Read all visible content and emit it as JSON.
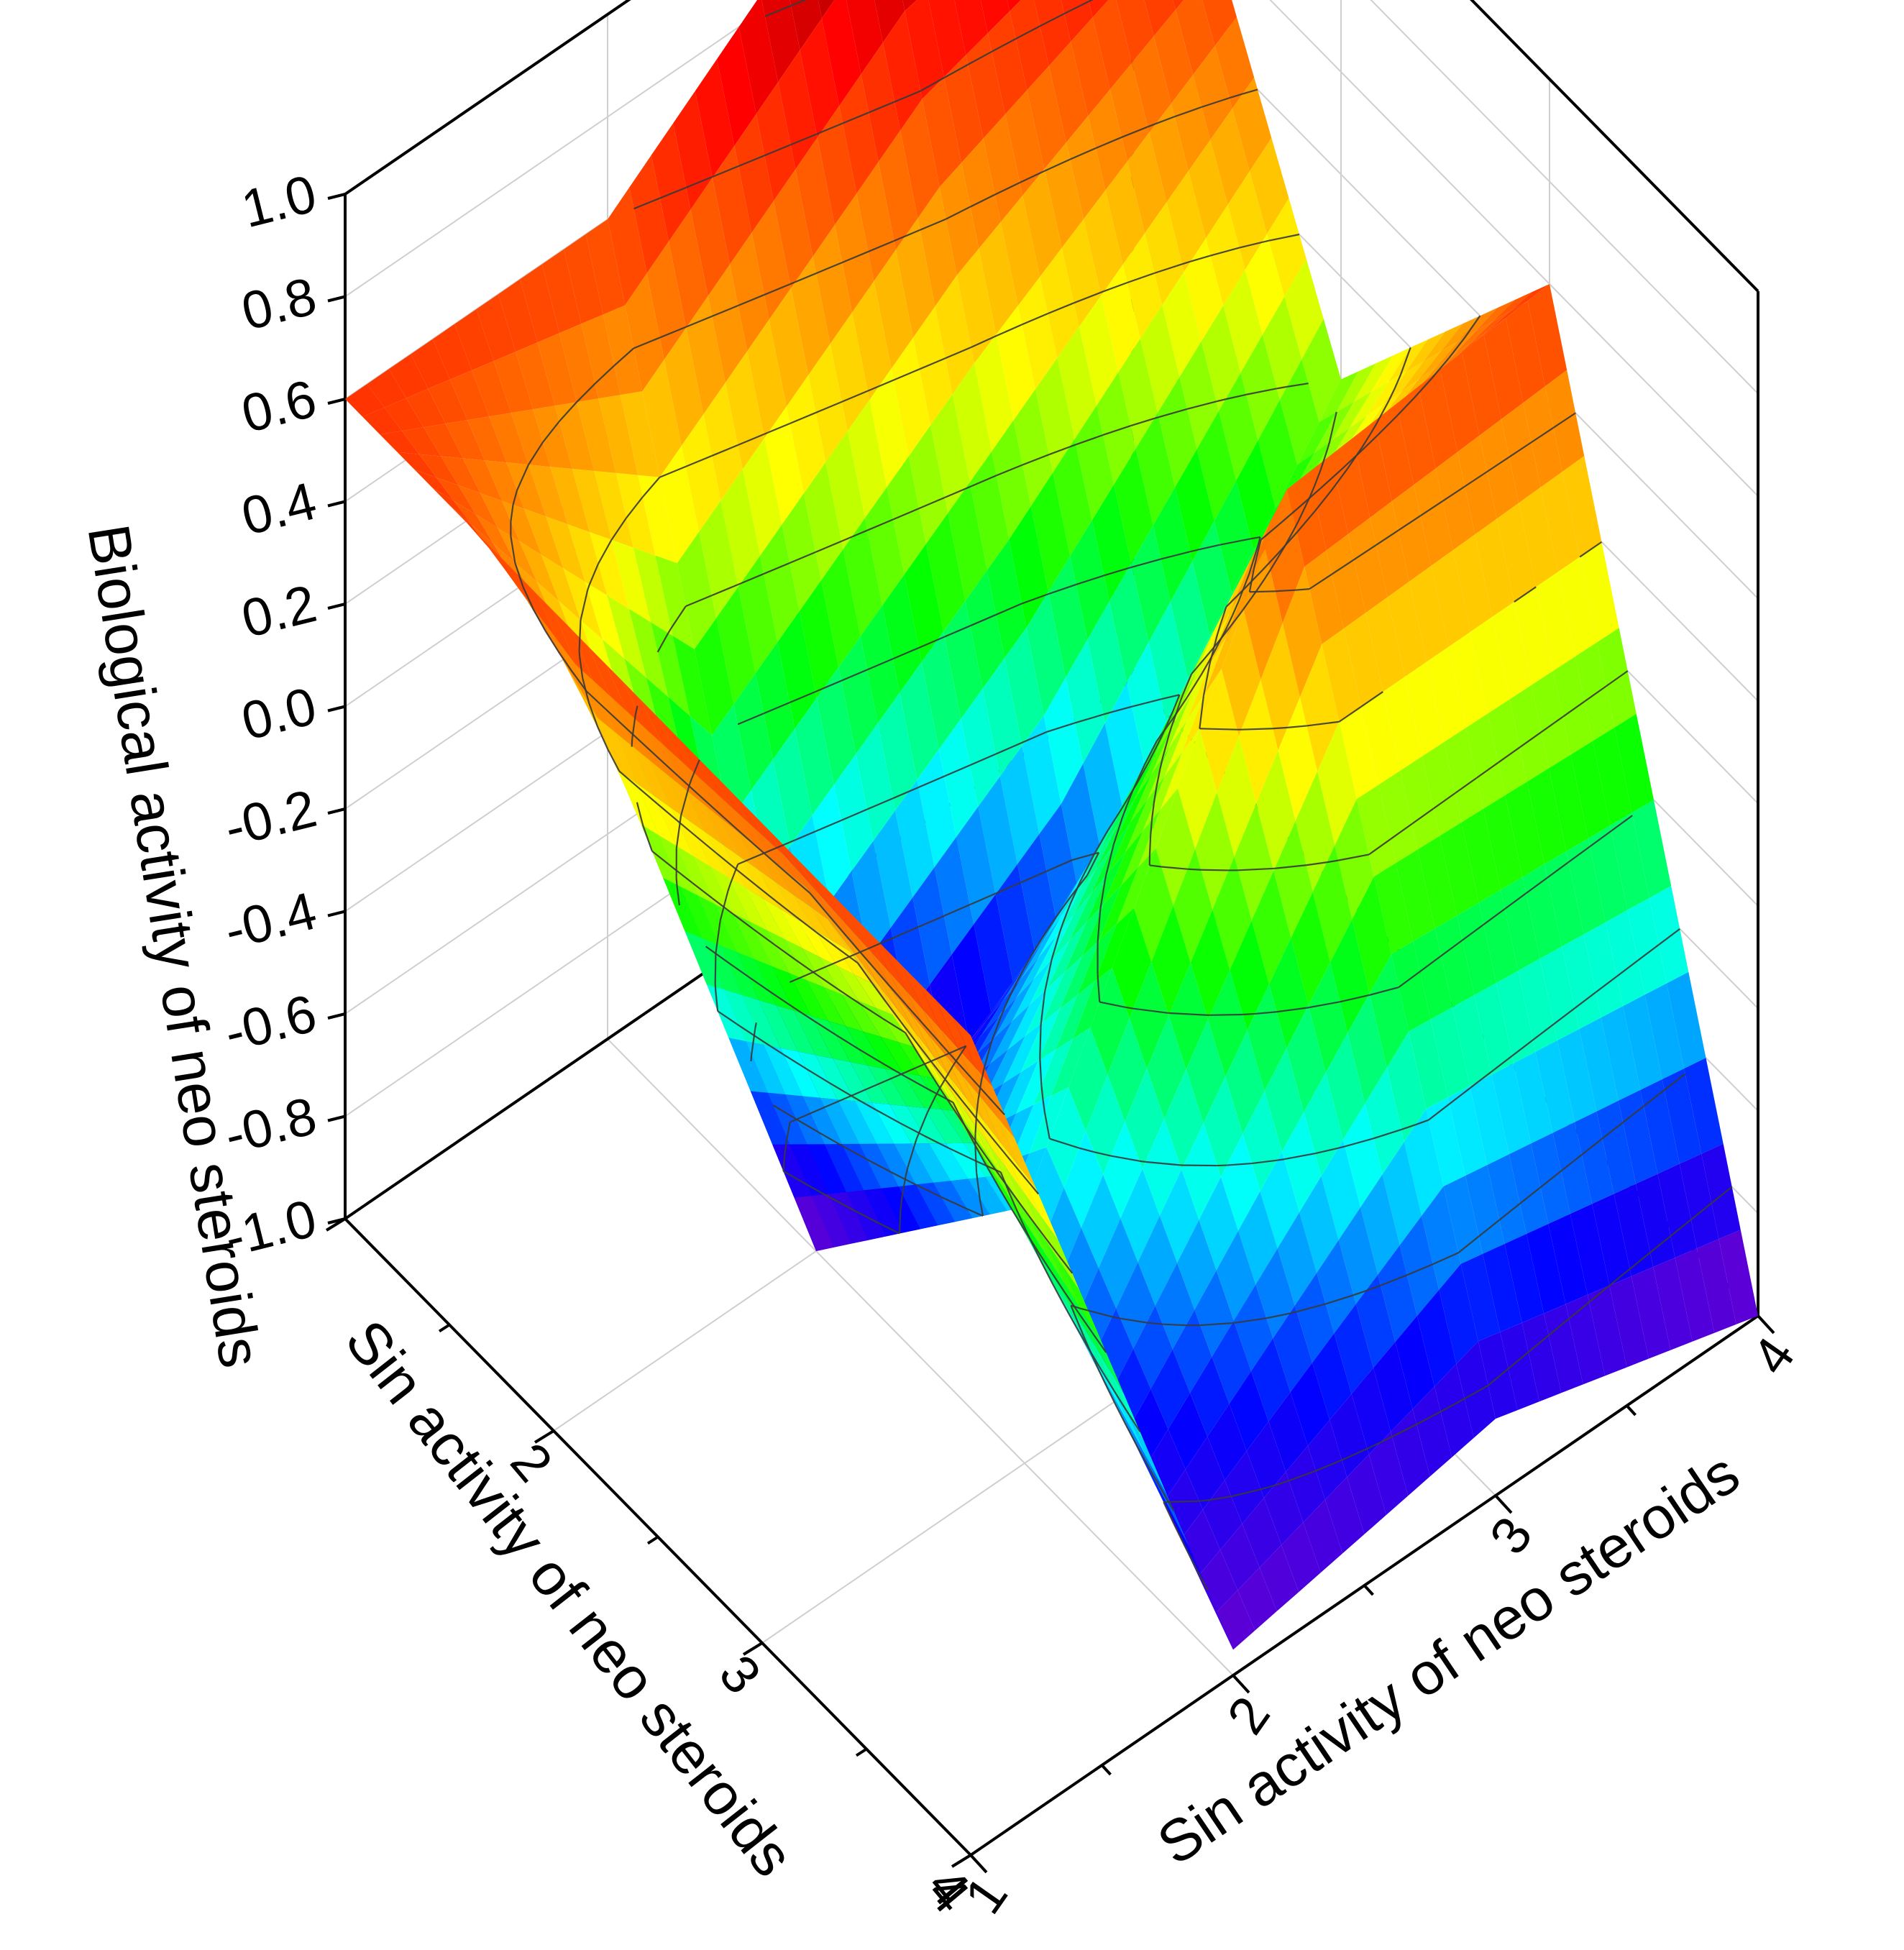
{
  "chart_data": {
    "type": "surface3d",
    "title": "",
    "x_axis": {
      "label": "Sin activity of neo steroids",
      "ticks": [
        "1",
        "2",
        "3",
        "4"
      ],
      "range": [
        1,
        4
      ]
    },
    "y_axis": {
      "label": "Sin activity of neo steroids",
      "ticks": [
        "1",
        "2",
        "3",
        "4"
      ],
      "range": [
        1,
        4
      ]
    },
    "z_axis": {
      "label": "Biological activity of neo steroids",
      "ticks": [
        "-1.0",
        "-0.8",
        "-0.6",
        "-0.4",
        "-0.2",
        "0.0",
        "0.2",
        "0.4",
        "0.6",
        "0.8",
        "1.0"
      ],
      "range": [
        -1.0,
        1.0
      ]
    },
    "x": [
      1,
      2,
      3,
      4
    ],
    "y": [
      1,
      2,
      3,
      4
    ],
    "z": [
      [
        0.6,
        0.6,
        1.0,
        1.0
      ],
      [
        0.6,
        -1.0,
        -0.65,
        0.0
      ],
      [
        0.6,
        -0.5,
        0.55,
        0.6
      ],
      [
        0.6,
        -0.95,
        -0.85,
        -1.0
      ]
    ],
    "colormap": [
      "#7a00c8",
      "#0000ff",
      "#00ffff",
      "#00ff00",
      "#ffff00",
      "#ff8000",
      "#ff0000",
      "#8b0000"
    ],
    "contour_levels": [
      -0.8,
      -0.6,
      -0.4,
      -0.2,
      0.0,
      0.2,
      0.4,
      0.6,
      0.8
    ],
    "grid": true
  }
}
